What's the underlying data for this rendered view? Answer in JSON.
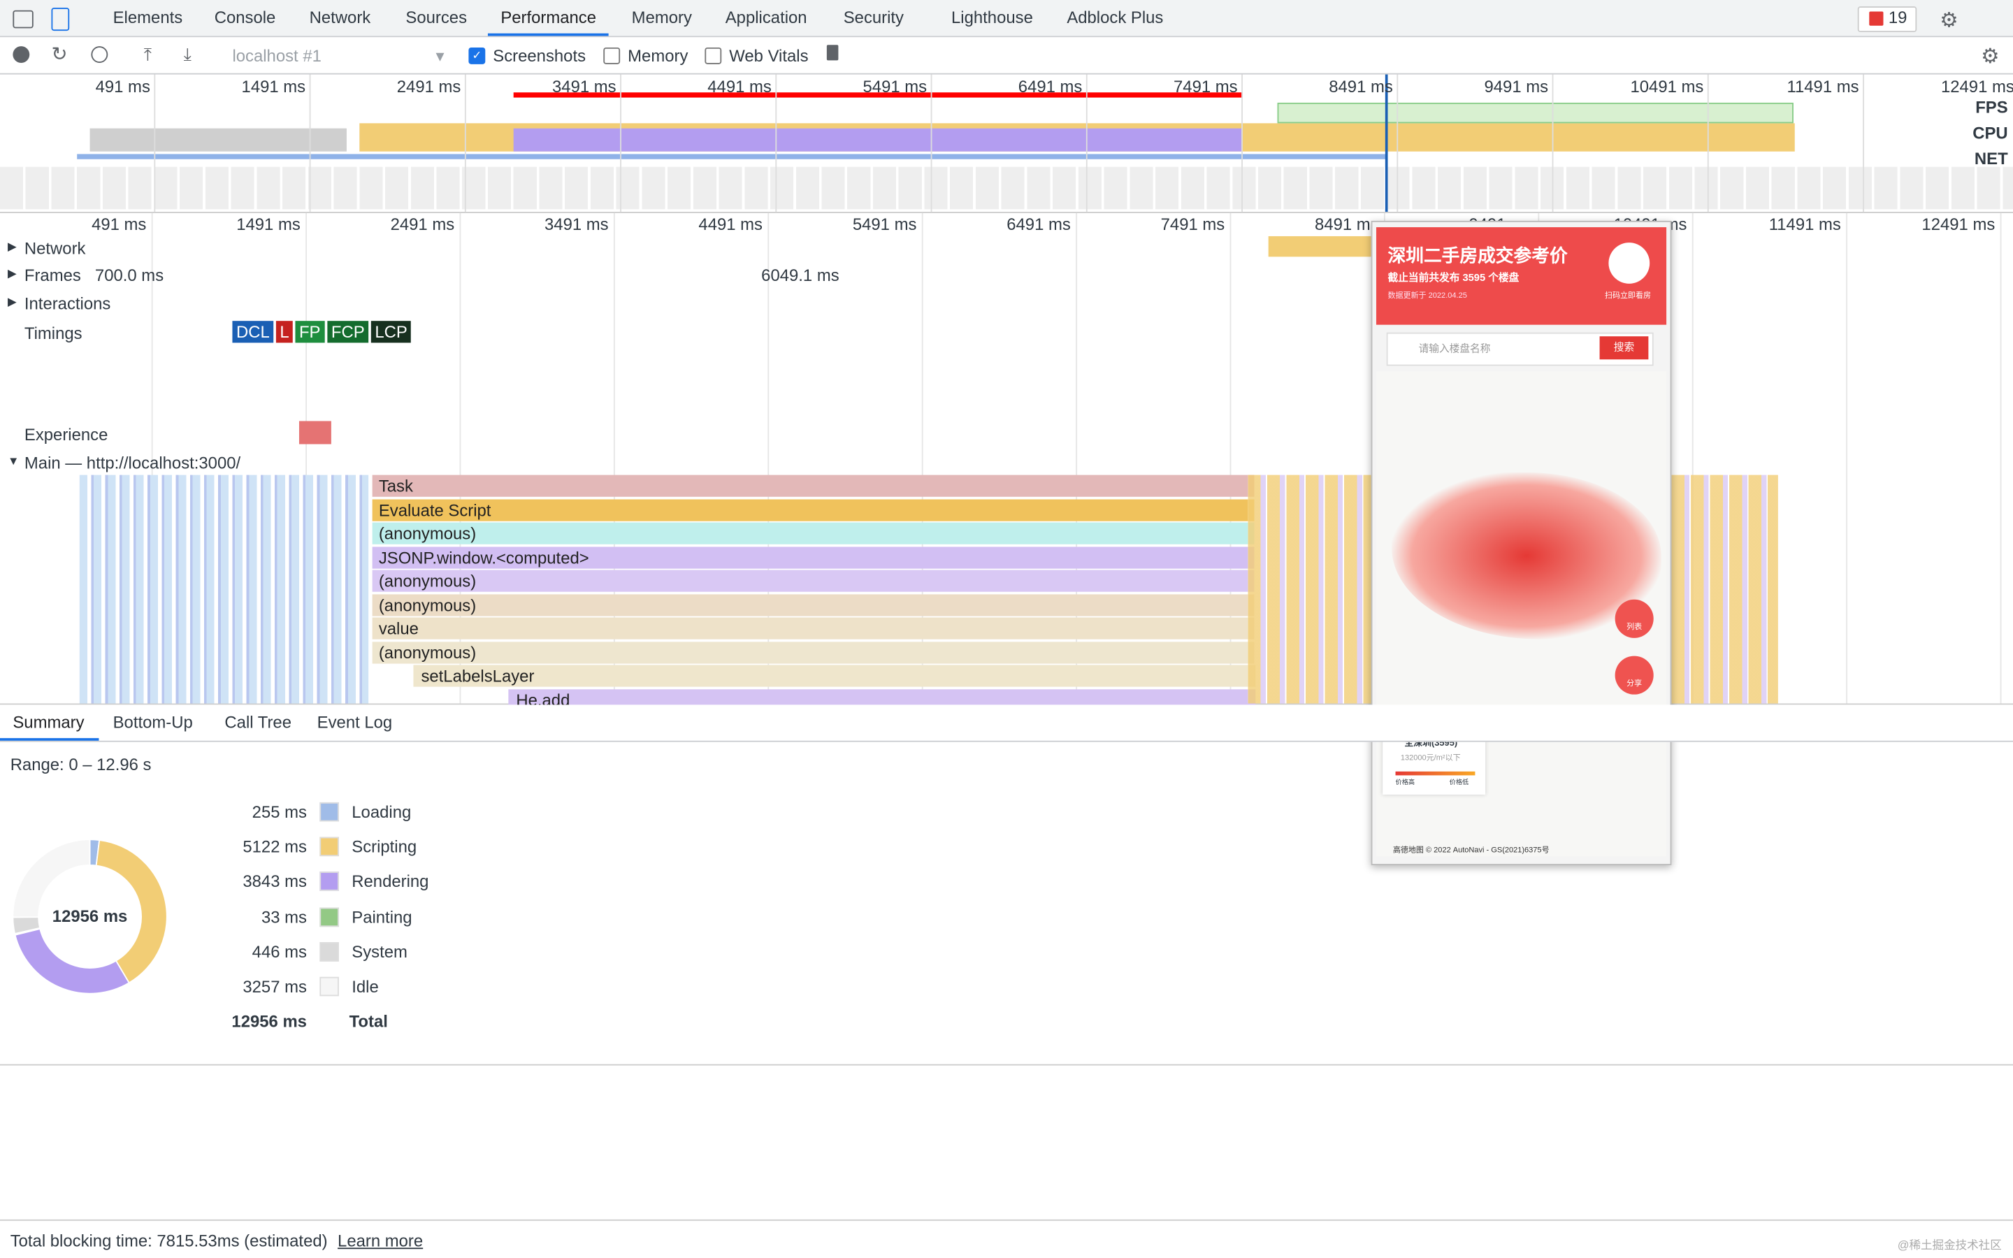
{
  "tabs": [
    "Elements",
    "Console",
    "Network",
    "Sources",
    "Performance",
    "Memory",
    "Application",
    "Security",
    "Lighthouse",
    "Adblock Plus"
  ],
  "active_tab": 4,
  "error_count": "19",
  "toolbar": {
    "target": "localhost #1",
    "checkboxes": [
      {
        "label": "Screenshots",
        "checked": true
      },
      {
        "label": "Memory",
        "checked": false
      },
      {
        "label": "Web Vitals",
        "checked": false
      }
    ]
  },
  "ruler_ticks": [
    "491 ms",
    "1491 ms",
    "2491 ms",
    "3491 ms",
    "4491 ms",
    "5491 ms",
    "6491 ms",
    "7491 ms",
    "8491 ms",
    "9491 ms",
    "10491 ms",
    "11491 ms",
    "12491 ms"
  ],
  "overview_labels": [
    "FPS",
    "CPU",
    "NET"
  ],
  "tracks": [
    "Network",
    "Frames",
    "Interactions",
    "Timings",
    "Experience",
    "Main — http://localhost:3000/"
  ],
  "frame_times": [
    "700.0 ms",
    "6049.1 ms"
  ],
  "timings": [
    {
      "label": "DCL",
      "color": "#1a5fb4"
    },
    {
      "label": "L",
      "color": "#c5221f"
    },
    {
      "label": "FP",
      "color": "#1e8e3e"
    },
    {
      "label": "FCP",
      "color": "#146c2e"
    },
    {
      "label": "LCP",
      "color": "#17301f"
    }
  ],
  "flame": [
    {
      "name": "Task",
      "color": "#e3b8b8"
    },
    {
      "name": "Evaluate Script",
      "color": "#f0c25c"
    },
    {
      "name": "(anonymous)",
      "color": "#bfefec"
    },
    {
      "name": "JSONP.window.<computed>",
      "color": "#d2bff3"
    },
    {
      "name": "(anonymous)",
      "color": "#d9c8f4"
    },
    {
      "name": "(anonymous)",
      "color": "#ecdcc6"
    },
    {
      "name": "value",
      "color": "#eee2c9"
    },
    {
      "name": "(anonymous)",
      "color": "#eee6cf"
    },
    {
      "name": "setLabelsLayer",
      "color": "#efe6cc"
    },
    {
      "name": "He.add",
      "color": "#d5c3f3"
    }
  ],
  "screenshot": {
    "title": "深圳二手房成交参考价",
    "subtitle": "截止当前共发布 3595 个楼盘",
    "updated": "数据更新于 2022.04.25",
    "qr": "扫码立即看房",
    "search_placeholder": "请输入楼盘名称",
    "search_button": "搜索",
    "list": "列表",
    "share": "分享",
    "area": "全深圳(3595)",
    "price": "132000元/m²以下",
    "high": "价格高",
    "low": "价格低",
    "credit": "高德地图 © 2022 AutoNavi - GS(2021)6375号"
  },
  "bottom_tabs": [
    "Summary",
    "Bottom-Up",
    "Call Tree",
    "Event Log"
  ],
  "range": "Range: 0 – 12.96 s",
  "summary": {
    "items": [
      {
        "name": "Loading",
        "label": "255 ms",
        "value": 255,
        "color": "#a0bce8"
      },
      {
        "name": "Scripting",
        "label": "5122 ms",
        "value": 5122,
        "color": "#f2cd75"
      },
      {
        "name": "Rendering",
        "label": "3843 ms",
        "value": 3843,
        "color": "#b39df0"
      },
      {
        "name": "Painting",
        "label": "33 ms",
        "value": 33,
        "color": "#93c985"
      },
      {
        "name": "System",
        "label": "446 ms",
        "value": 446,
        "color": "#dadada"
      },
      {
        "name": "Idle",
        "label": "3257 ms",
        "value": 3257,
        "color": "#f6f6f6"
      }
    ],
    "total_label": "12956 ms",
    "total_value": 12956,
    "total_name": "Total"
  },
  "footer": {
    "text": "Total blocking time: 7815.53ms (estimated)",
    "link": "Learn more",
    "watermark": "@稀土掘金技术社区"
  }
}
